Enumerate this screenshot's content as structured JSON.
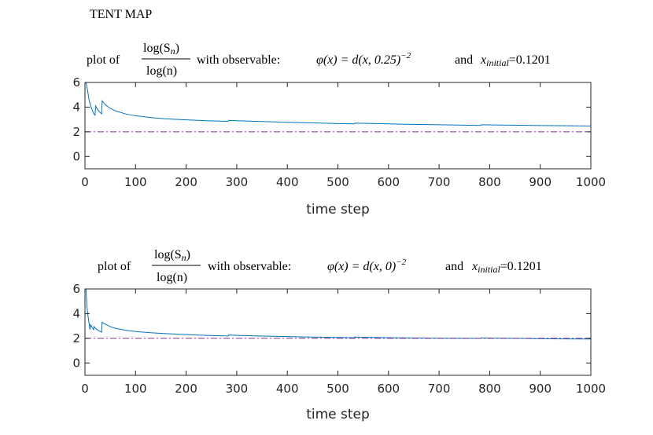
{
  "figure_title": "TENT MAP",
  "chart_data": [
    {
      "type": "line",
      "title_prefix": "plot of",
      "ratio_numerator": "log(S",
      "ratio_numerator_sub": "n",
      "ratio_numerator_close": ")",
      "ratio_denominator": "log(n)",
      "title_middle": "with observable:",
      "observable": "φ(x) = d(x, 0.25)",
      "observable_exponent": "−2",
      "title_and": "and",
      "initial_symbol": "x",
      "initial_sub": "initial",
      "initial_value": "=0.1201",
      "xlabel": "time step",
      "xlim": [
        0,
        1000
      ],
      "ylim": [
        -1,
        6
      ],
      "xticks": [
        "0",
        "100",
        "200",
        "300",
        "400",
        "500",
        "600",
        "700",
        "800",
        "900",
        "1000"
      ],
      "yticks": [
        "0",
        "2",
        "4",
        "6"
      ],
      "series": [
        {
          "name": "log(S_n)/log(n)",
          "color": "#0072BD",
          "points": [
            [
              2,
              6.0
            ],
            [
              5,
              5.4
            ],
            [
              8,
              4.6
            ],
            [
              12,
              4.0
            ],
            [
              17,
              3.5
            ],
            [
              20,
              3.35
            ],
            [
              21,
              4.1
            ],
            [
              25,
              3.8
            ],
            [
              29,
              3.6
            ],
            [
              33,
              3.45
            ],
            [
              34,
              4.5
            ],
            [
              40,
              4.2
            ],
            [
              50,
              3.9
            ],
            [
              60,
              3.7
            ],
            [
              80,
              3.45
            ],
            [
              100,
              3.3
            ],
            [
              130,
              3.15
            ],
            [
              160,
              3.05
            ],
            [
              200,
              2.97
            ],
            [
              240,
              2.9
            ],
            [
              283,
              2.84
            ],
            [
              284,
              2.93
            ],
            [
              300,
              2.9
            ],
            [
              350,
              2.83
            ],
            [
              400,
              2.77
            ],
            [
              450,
              2.72
            ],
            [
              500,
              2.67
            ],
            [
              532,
              2.64
            ],
            [
              533,
              2.7
            ],
            [
              560,
              2.68
            ],
            [
              600,
              2.64
            ],
            [
              650,
              2.6
            ],
            [
              700,
              2.57
            ],
            [
              750,
              2.54
            ],
            [
              782,
              2.52
            ],
            [
              783,
              2.57
            ],
            [
              820,
              2.55
            ],
            [
              860,
              2.53
            ],
            [
              900,
              2.51
            ],
            [
              950,
              2.49
            ],
            [
              1000,
              2.47
            ]
          ]
        },
        {
          "name": "reference",
          "color": "#7E2F8E",
          "style": "dash-dot",
          "points": [
            [
              0,
              2
            ],
            [
              1000,
              2
            ]
          ]
        }
      ]
    },
    {
      "type": "line",
      "title_prefix": "plot of",
      "ratio_numerator": "log(S",
      "ratio_numerator_sub": "n",
      "ratio_numerator_close": ")",
      "ratio_denominator": "log(n)",
      "title_middle": "with observable:",
      "observable": "φ(x) = d(x, 0)",
      "observable_exponent": "−2",
      "title_and": "and",
      "initial_symbol": "x",
      "initial_sub": "initial",
      "initial_value": "=0.1201",
      "xlabel": "time step",
      "xlim": [
        0,
        1000
      ],
      "ylim": [
        -1,
        6
      ],
      "xticks": [
        "0",
        "100",
        "200",
        "300",
        "400",
        "500",
        "600",
        "700",
        "800",
        "900",
        "1000"
      ],
      "yticks": [
        "0",
        "2",
        "4",
        "6"
      ],
      "series": [
        {
          "name": "log(S_n)/log(n)",
          "color": "#0072BD",
          "points": [
            [
              2,
              6.0
            ],
            [
              4,
              4.5
            ],
            [
              7,
              3.5
            ],
            [
              9,
              3.0
            ],
            [
              10,
              2.7
            ],
            [
              11,
              3.1
            ],
            [
              14,
              2.9
            ],
            [
              17,
              2.7
            ],
            [
              18,
              2.95
            ],
            [
              22,
              2.75
            ],
            [
              27,
              2.62
            ],
            [
              33,
              2.5
            ],
            [
              34,
              3.3
            ],
            [
              40,
              3.15
            ],
            [
              50,
              2.95
            ],
            [
              60,
              2.82
            ],
            [
              80,
              2.65
            ],
            [
              100,
              2.55
            ],
            [
              130,
              2.45
            ],
            [
              160,
              2.38
            ],
            [
              200,
              2.3
            ],
            [
              240,
              2.24
            ],
            [
              283,
              2.19
            ],
            [
              284,
              2.27
            ],
            [
              300,
              2.24
            ],
            [
              350,
              2.18
            ],
            [
              400,
              2.14
            ],
            [
              450,
              2.1
            ],
            [
              500,
              2.07
            ],
            [
              532,
              2.05
            ],
            [
              533,
              2.1
            ],
            [
              560,
              2.08
            ],
            [
              600,
              2.05
            ],
            [
              650,
              2.03
            ],
            [
              700,
              2.01
            ],
            [
              750,
              2.0
            ],
            [
              782,
              1.99
            ],
            [
              783,
              2.03
            ],
            [
              820,
              2.01
            ],
            [
              860,
              1.99
            ],
            [
              900,
              1.97
            ],
            [
              950,
              1.95
            ],
            [
              1000,
              1.94
            ]
          ]
        },
        {
          "name": "reference",
          "color": "#7E2F8E",
          "style": "dash-dot",
          "points": [
            [
              0,
              2
            ],
            [
              1000,
              2
            ]
          ]
        }
      ]
    }
  ]
}
